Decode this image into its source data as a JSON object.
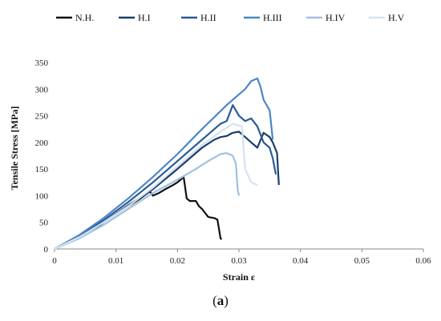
{
  "caption": {
    "open": "(",
    "letter": "a",
    "close": ")"
  },
  "chart_data": {
    "type": "line",
    "xlabel": "Strain ε",
    "ylabel": "Tensile Stress [MPa]",
    "xlim": [
      0,
      0.06
    ],
    "ylim": [
      0,
      350
    ],
    "x_ticks": [
      0,
      0.01,
      0.02,
      0.03,
      0.04,
      0.05,
      0.06
    ],
    "x_tick_labels": [
      "0",
      "0.01",
      "0.02",
      "0.03",
      "0.04",
      "0.05",
      "0.06"
    ],
    "y_ticks": [
      0,
      50,
      100,
      150,
      200,
      250,
      300,
      350
    ],
    "y_tick_labels": [
      "0",
      "50",
      "100",
      "150",
      "200",
      "250",
      "300",
      "350"
    ],
    "grid": false,
    "legend_position": "top",
    "series": [
      {
        "name": "N.H.",
        "color": "#111111",
        "x": [
          0,
          0.002,
          0.004,
          0.006,
          0.008,
          0.01,
          0.012,
          0.014,
          0.0155,
          0.016,
          0.017,
          0.018,
          0.019,
          0.02,
          0.0205,
          0.021,
          0.0212,
          0.0215,
          0.022,
          0.023,
          0.0235,
          0.024,
          0.025,
          0.026,
          0.0265,
          0.027,
          0.0272
        ],
        "y": [
          0,
          10,
          20,
          33,
          50,
          65,
          80,
          95,
          108,
          100,
          105,
          112,
          118,
          125,
          130,
          135,
          120,
          95,
          90,
          90,
          80,
          75,
          60,
          58,
          55,
          20,
          18
        ]
      },
      {
        "name": "H.I",
        "color": "#1b3d6e",
        "x": [
          0,
          0.004,
          0.008,
          0.012,
          0.016,
          0.02,
          0.024,
          0.026,
          0.027,
          0.028,
          0.029,
          0.03,
          0.031,
          0.032,
          0.033,
          0.034,
          0.035,
          0.0355,
          0.0362,
          0.0365
        ],
        "y": [
          0,
          22,
          50,
          82,
          112,
          150,
          190,
          205,
          210,
          212,
          218,
          220,
          210,
          200,
          190,
          218,
          210,
          200,
          180,
          120
        ]
      },
      {
        "name": "H.II",
        "color": "#2a5b93",
        "x": [
          0,
          0.004,
          0.008,
          0.012,
          0.016,
          0.02,
          0.024,
          0.027,
          0.028,
          0.029,
          0.03,
          0.031,
          0.032,
          0.033,
          0.034,
          0.035,
          0.0355,
          0.036
        ],
        "y": [
          0,
          24,
          54,
          88,
          125,
          165,
          205,
          235,
          240,
          270,
          250,
          240,
          245,
          230,
          200,
          190,
          170,
          140
        ]
      },
      {
        "name": "H.III",
        "color": "#4d86c6",
        "x": [
          0,
          0.004,
          0.008,
          0.012,
          0.016,
          0.02,
          0.024,
          0.028,
          0.03,
          0.031,
          0.032,
          0.033,
          0.0335,
          0.034,
          0.035,
          0.0355
        ],
        "y": [
          0,
          26,
          58,
          95,
          135,
          178,
          225,
          270,
          290,
          300,
          315,
          320,
          305,
          280,
          260,
          205
        ]
      },
      {
        "name": "H.IV",
        "color": "#9fc1e2",
        "x": [
          0,
          0.004,
          0.008,
          0.012,
          0.016,
          0.02,
          0.023,
          0.025,
          0.027,
          0.028,
          0.029,
          0.0295,
          0.0298,
          0.03
        ],
        "y": [
          0,
          20,
          45,
          75,
          105,
          130,
          150,
          165,
          178,
          180,
          175,
          160,
          110,
          100
        ]
      },
      {
        "name": "H.V",
        "color": "#d4e3f2",
        "x": [
          0,
          0.004,
          0.008,
          0.012,
          0.016,
          0.02,
          0.024,
          0.027,
          0.029,
          0.0305,
          0.031,
          0.032,
          0.033
        ],
        "y": [
          0,
          22,
          50,
          80,
          115,
          155,
          195,
          220,
          235,
          230,
          150,
          125,
          120
        ]
      }
    ]
  }
}
